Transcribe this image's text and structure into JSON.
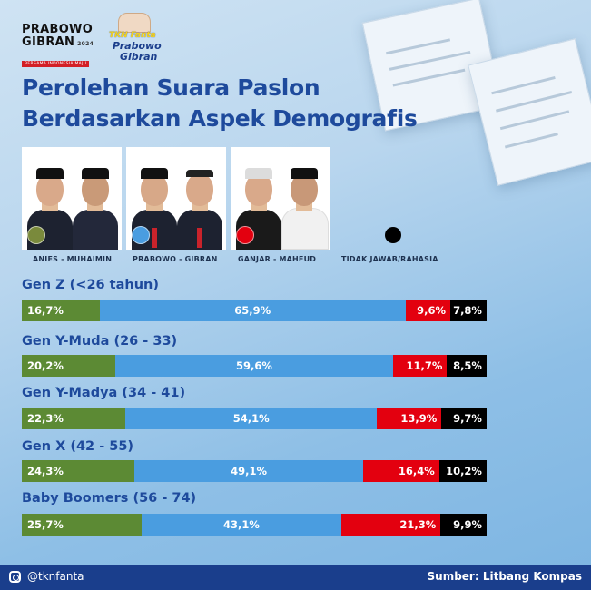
{
  "brand": {
    "line1": "PRABOWO",
    "line2": "GIBRAN",
    "year": "2024",
    "tagline": "BERSAMA INDONESIA MAJU"
  },
  "campaign_logo": {
    "line1": "TKN Fanta",
    "line2": "Prabowo",
    "line3": "Gibran"
  },
  "title": {
    "line1": "Perolehan Suara Paslon",
    "line2": "Berdasarkan Aspek Demografis"
  },
  "candidates": [
    {
      "label": "ANIES - MUHAIMIN",
      "color": "#7a8a3c"
    },
    {
      "label": "PRABOWO - GIBRAN",
      "color": "#4a9de0"
    },
    {
      "label": "GANJAR - MAHFUD",
      "color": "#e3000f"
    },
    {
      "label": "TIDAK JAWAB/RAHASIA",
      "color": "#000000"
    }
  ],
  "chart_data": {
    "type": "bar",
    "orientation": "horizontal",
    "stacked": true,
    "normalized": true,
    "categories": [
      "Gen Z (<26 tahun)",
      "Gen Y-Muda (26 - 33)",
      "Gen Y-Madya (34 - 41)",
      "Gen X (42 - 55)",
      "Baby Boomers (56 - 74)"
    ],
    "series": [
      {
        "name": "ANIES - MUHAIMIN",
        "color": "#5c8a34",
        "values": [
          16.7,
          20.2,
          22.3,
          24.3,
          25.7
        ],
        "labels": [
          "16,7%",
          "20,2%",
          "22,3%",
          "24,3%",
          "25,7%"
        ]
      },
      {
        "name": "PRABOWO - GIBRAN",
        "color": "#4a9de0",
        "values": [
          65.9,
          59.6,
          54.1,
          49.1,
          43.1
        ],
        "labels": [
          "65,9%",
          "59,6%",
          "54,1%",
          "49,1%",
          "43,1%"
        ]
      },
      {
        "name": "GANJAR - MAHFUD",
        "color": "#e3000f",
        "values": [
          9.6,
          11.7,
          13.9,
          16.4,
          21.3
        ],
        "labels": [
          "9,6%",
          "11,7%",
          "13,9%",
          "16,4%",
          "21,3%"
        ]
      },
      {
        "name": "TIDAK JAWAB/RAHASIA",
        "color": "#000000",
        "values": [
          7.8,
          8.5,
          9.7,
          10.2,
          9.9
        ],
        "labels": [
          "7,8%",
          "8,5%",
          "9,7%",
          "10,2%",
          "9,9%"
        ]
      }
    ]
  },
  "footer": {
    "handle": "@tknfanta",
    "source": "Sumber: Litbang Kompas"
  }
}
